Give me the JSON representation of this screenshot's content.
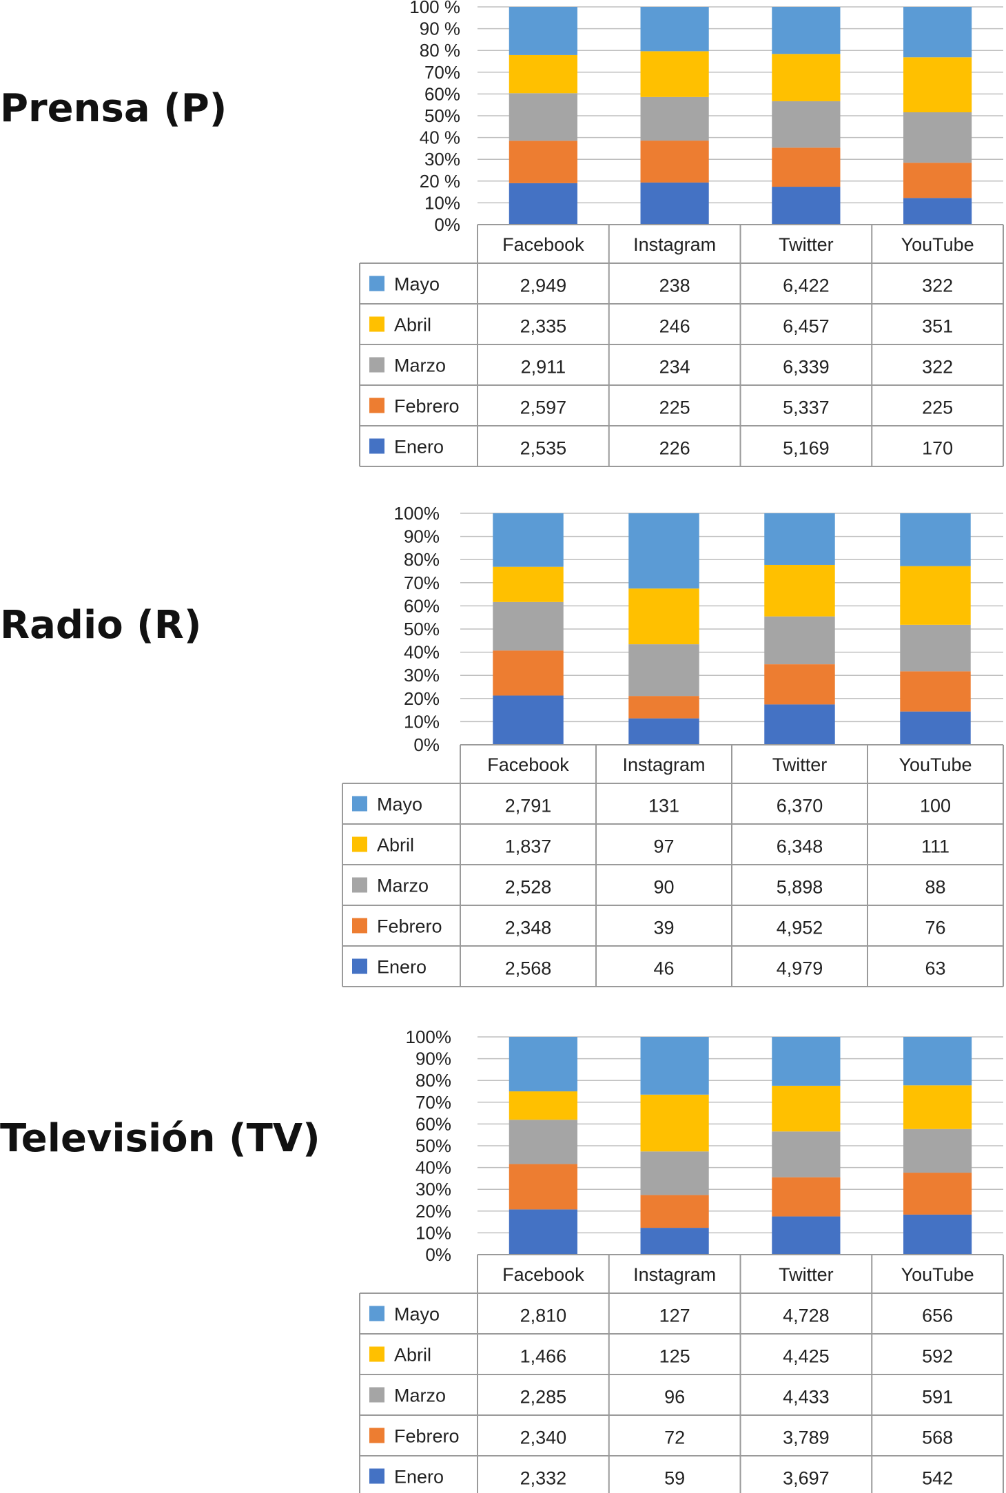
{
  "colors": {
    "Mayo": "#5b9bd5",
    "Abril": "#ffc000",
    "Marzo": "#a5a5a5",
    "Febrero": "#ed7d31",
    "Enero": "#4472c4",
    "grid": "#bfbfbf",
    "border": "#9a9a9a"
  },
  "chart_data": [
    {
      "type": "bar",
      "stacked": "percent",
      "title": "Prensa (P)",
      "categories": [
        "Facebook",
        "Instagram",
        "Twitter",
        "YouTube"
      ],
      "yticks": [
        "0%",
        "10%",
        "20 %",
        "30%",
        "40 %",
        "50%",
        "60%",
        "70%",
        "80 %",
        "90 %",
        "100 %"
      ],
      "ylim": [
        0,
        100
      ],
      "legend": "data-table",
      "series": [
        {
          "name": "Mayo",
          "values": [
            2949,
            238,
            6422,
            322
          ],
          "labels": [
            "2,949",
            "238",
            "6,422",
            "322"
          ]
        },
        {
          "name": "Abril",
          "values": [
            2335,
            246,
            6457,
            351
          ],
          "labels": [
            "2,335",
            "246",
            "6,457",
            "351"
          ]
        },
        {
          "name": "Marzo",
          "values": [
            2911,
            234,
            6339,
            322
          ],
          "labels": [
            "2,911",
            "234",
            "6,339",
            "322"
          ]
        },
        {
          "name": "Febrero",
          "values": [
            2597,
            225,
            5337,
            225
          ],
          "labels": [
            "2,597",
            "225",
            "5,337",
            "225"
          ]
        },
        {
          "name": "Enero",
          "values": [
            2535,
            226,
            5169,
            170
          ],
          "labels": [
            "2,535",
            "226",
            "5,169",
            "170"
          ]
        }
      ]
    },
    {
      "type": "bar",
      "stacked": "percent",
      "title": "Radio (R)",
      "categories": [
        "Facebook",
        "Instagram",
        "Twitter",
        "YouTube"
      ],
      "yticks": [
        "0%",
        "10%",
        "20%",
        "30%",
        "40%",
        "50%",
        "60%",
        "70%",
        "80%",
        "90%",
        "100%"
      ],
      "ylim": [
        0,
        100
      ],
      "legend": "data-table",
      "series": [
        {
          "name": "Mayo",
          "values": [
            2791,
            131,
            6370,
            100
          ],
          "labels": [
            "2,791",
            "131",
            "6,370",
            "100"
          ]
        },
        {
          "name": "Abril",
          "values": [
            1837,
            97,
            6348,
            111
          ],
          "labels": [
            "1,837",
            "97",
            "6,348",
            "111"
          ]
        },
        {
          "name": "Marzo",
          "values": [
            2528,
            90,
            5898,
            88
          ],
          "labels": [
            "2,528",
            "90",
            "5,898",
            "88"
          ]
        },
        {
          "name": "Febrero",
          "values": [
            2348,
            39,
            4952,
            76
          ],
          "labels": [
            "2,348",
            "39",
            "4,952",
            "76"
          ]
        },
        {
          "name": "Enero",
          "values": [
            2568,
            46,
            4979,
            63
          ],
          "labels": [
            "2,568",
            "46",
            "4,979",
            "63"
          ]
        }
      ]
    },
    {
      "type": "bar",
      "stacked": "percent",
      "title": "Televisión (TV)",
      "categories": [
        "Facebook",
        "Instagram",
        "Twitter",
        "YouTube"
      ],
      "yticks": [
        "0%",
        "10%",
        "20%",
        "30%",
        "40%",
        "50%",
        "60%",
        "70%",
        "80%",
        "90%",
        "100%"
      ],
      "ylim": [
        0,
        100
      ],
      "legend": "data-table",
      "series": [
        {
          "name": "Mayo",
          "values": [
            2810,
            127,
            4728,
            656
          ],
          "labels": [
            "2,810",
            "127",
            "4,728",
            "656"
          ]
        },
        {
          "name": "Abril",
          "values": [
            1466,
            125,
            4425,
            592
          ],
          "labels": [
            "1,466",
            "125",
            "4,425",
            "592"
          ]
        },
        {
          "name": "Marzo",
          "values": [
            2285,
            96,
            4433,
            591
          ],
          "labels": [
            "2,285",
            "96",
            "4,433",
            "591"
          ]
        },
        {
          "name": "Febrero",
          "values": [
            2340,
            72,
            3789,
            568
          ],
          "labels": [
            "2,340",
            "72",
            "3,789",
            "568"
          ]
        },
        {
          "name": "Enero",
          "values": [
            2332,
            59,
            3697,
            542
          ],
          "labels": [
            "2,332",
            "59",
            "3,697",
            "542"
          ]
        }
      ]
    }
  ]
}
